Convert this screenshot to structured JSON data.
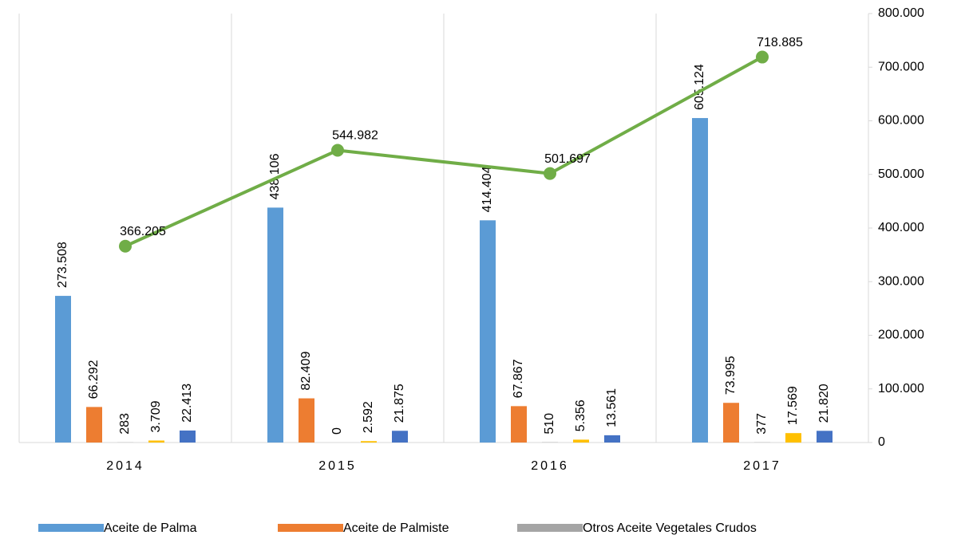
{
  "chart_data": {
    "type": "bar_line",
    "categories": [
      "2014",
      "2015",
      "2016",
      "2017"
    ],
    "series": [
      {
        "name": "Aceite de Palma",
        "color": "#5b9bd5",
        "values": [
          273508,
          438106,
          414404,
          605124
        ],
        "value_labels": [
          "273.508",
          "438.106",
          "414.404",
          "605.124"
        ]
      },
      {
        "name": "Aceite de Palmiste",
        "color": "#ed7d31",
        "values": [
          66292,
          82409,
          67867,
          73995
        ],
        "value_labels": [
          "66.292",
          "82.409",
          "67.867",
          "73.995"
        ]
      },
      {
        "name": "Otros Aceite Vegetales Crudos",
        "color": "#a5a5a5",
        "values": [
          283,
          0,
          510,
          377
        ]
      },
      {
        "color": "#ffc000",
        "values": [
          3709,
          2592,
          5356,
          17569
        ],
        "value_labels": [
          "3.709",
          "2.592",
          "5.356",
          "17.569"
        ]
      },
      {
        "color": "#4472c4",
        "values": [
          22413,
          21875,
          13561,
          21820
        ],
        "value_labels": [
          "22.413",
          "21.875",
          "13.561",
          "21.820"
        ]
      },
      {
        "type": "line",
        "color": "#70ad47",
        "values": [
          366205,
          544982,
          501697,
          718885
        ],
        "value_labels": [
          "366.205",
          "544.982",
          "501.697",
          "718.885"
        ]
      }
    ],
    "ylim": [
      0,
      800000
    ],
    "yticks": [
      0,
      {
        "value": 100000,
        "label": "100.000"
      },
      {
        "value": 200000,
        "label": "200.000"
      },
      {
        "value": 300000,
        "label": "300.000"
      },
      {
        "value": 400000,
        "label": "400.000"
      },
      {
        "value": 500000,
        "label": "500.000"
      },
      {
        "value": 600000,
        "label": "600.000"
      },
      {
        "value": 700000,
        "label": "700.000"
      },
      {
        "value": 800000,
        "label": "800.000"
      }
    ],
    "legend": "bottom"
  }
}
